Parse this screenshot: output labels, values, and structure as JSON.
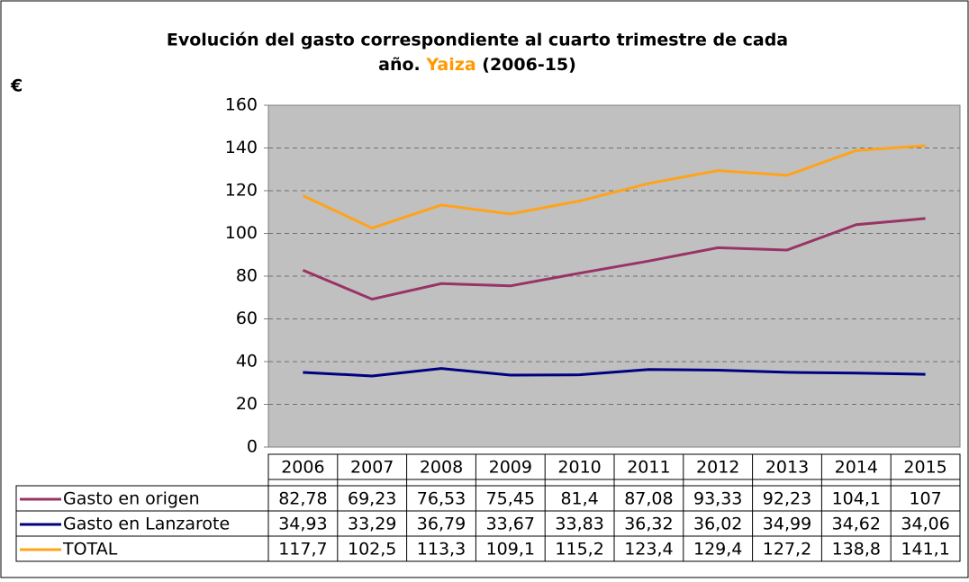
{
  "chart_data": {
    "type": "line",
    "title_lines": [
      "Evolución del gasto correspondiente al cuarto trimestre de cada",
      "año."
    ],
    "title_place": "Yaiza",
    "title_period": "(2006-15)",
    "title_place_color": "#ff9900",
    "ylabel": "€",
    "categories": [
      "2006",
      "2007",
      "2008",
      "2009",
      "2010",
      "2011",
      "2012",
      "2013",
      "2014",
      "2015"
    ],
    "series": [
      {
        "name": "Gasto en origen",
        "color": "#993366",
        "values": [
          82.78,
          69.23,
          76.53,
          75.45,
          81.4,
          87.08,
          93.33,
          92.23,
          104.1,
          107
        ],
        "value_labels": [
          "82,78",
          "69,23",
          "76,53",
          "75,45",
          "81,4",
          "87,08",
          "93,33",
          "92,23",
          "104,1",
          "107"
        ]
      },
      {
        "name": "Gasto en Lanzarote",
        "color": "#000080",
        "values": [
          34.93,
          33.29,
          36.79,
          33.67,
          33.83,
          36.32,
          36.02,
          34.99,
          34.62,
          34.06
        ],
        "value_labels": [
          "34,93",
          "33,29",
          "36,79",
          "33,67",
          "33,83",
          "36,32",
          "36,02",
          "34,99",
          "34,62",
          "34,06"
        ]
      },
      {
        "name": "TOTAL",
        "color": "#ffa31a",
        "values": [
          117.7,
          102.5,
          113.3,
          109.1,
          115.2,
          123.4,
          129.4,
          127.2,
          138.8,
          141.1
        ],
        "value_labels": [
          "117,7",
          "102,5",
          "113,3",
          "109,1",
          "115,2",
          "123,4",
          "129,4",
          "127,2",
          "138,8",
          "141,1"
        ]
      }
    ],
    "ylim": [
      0,
      160
    ],
    "yticks": [
      0,
      20,
      40,
      60,
      80,
      100,
      120,
      140,
      160
    ],
    "grid": true,
    "plot_background": "#c0c0c0"
  }
}
